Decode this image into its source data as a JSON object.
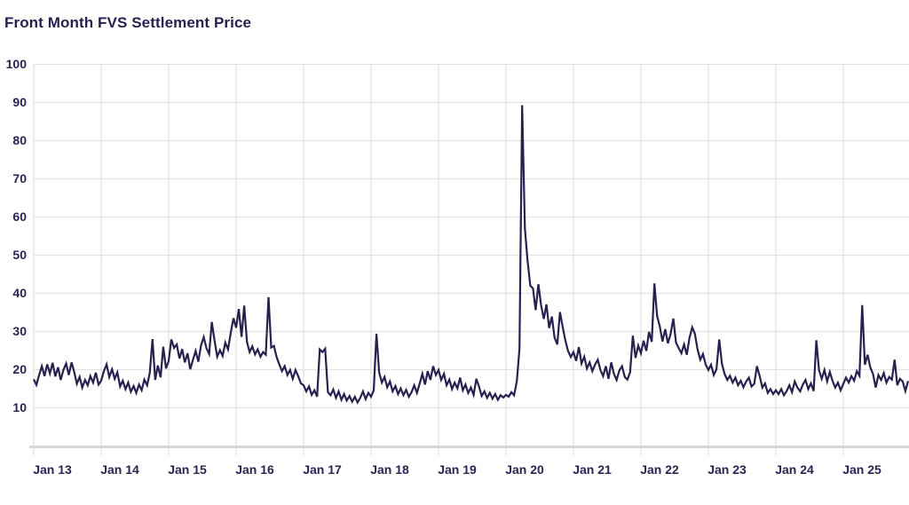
{
  "page": {
    "title": "Front Month FVS Settlement Price"
  },
  "colors": {
    "line": "#272150",
    "label_text": "#2a2454",
    "gridline": "#e2e2e2",
    "axis_line": "#d5d5d5",
    "background": "#ffffff"
  },
  "chart_data": {
    "type": "line",
    "title": "Front Month FVS Settlement Price",
    "xlabel": "",
    "ylabel": "",
    "grid": true,
    "legend_position": "none",
    "ylim": [
      0,
      100
    ],
    "y_tick_values": [
      10,
      20,
      30,
      40,
      50,
      60,
      70,
      80,
      90,
      100
    ],
    "x_tick_labels": [
      "Jan 13",
      "Jan 14",
      "Jan 15",
      "Jan 16",
      "Jan 17",
      "Jan 18",
      "Jan 19",
      "Jan 20",
      "Jan 21",
      "Jan 22",
      "Jan 23",
      "Jan 24",
      "Jan 25"
    ],
    "x_range_years": [
      2013.0,
      2025.96
    ],
    "annotations": [],
    "series": [
      {
        "name": "Front Month FVS Settlement Price",
        "start_year": 2013.0,
        "step_years": 0.04,
        "values": [
          17.5,
          16.0,
          18.6,
          20.9,
          18.3,
          21.4,
          19.0,
          21.8,
          18.2,
          20.6,
          17.3,
          19.9,
          21.6,
          18.6,
          21.9,
          19.4,
          16.3,
          18.1,
          15.3,
          17.3,
          15.9,
          18.3,
          16.6,
          19.2,
          16.1,
          17.1,
          19.6,
          21.4,
          18.1,
          20.1,
          17.6,
          19.3,
          15.6,
          17.1,
          14.9,
          16.6,
          14.2,
          15.7,
          13.9,
          16.1,
          14.6,
          17.4,
          15.9,
          19.1,
          28.0,
          17.3,
          21.1,
          18.0,
          26.0,
          20.3,
          22.3,
          27.9,
          25.7,
          26.6,
          22.9,
          25.4,
          21.9,
          24.3,
          20.1,
          22.6,
          24.9,
          22.1,
          26.4,
          28.5,
          25.6,
          24.1,
          32.5,
          27.6,
          23.4,
          25.1,
          23.6,
          27.1,
          25.3,
          29.6,
          33.5,
          31.0,
          35.9,
          28.6,
          36.8,
          27.3,
          24.6,
          26.1,
          24.0,
          25.3,
          23.4,
          24.6,
          23.9,
          39.0,
          25.8,
          26.2,
          23.3,
          21.4,
          19.6,
          20.9,
          18.6,
          19.9,
          17.6,
          19.9,
          18.3,
          16.4,
          15.9,
          14.3,
          15.6,
          13.4,
          14.6,
          12.9,
          25.3,
          24.6,
          25.5,
          14.1,
          13.3,
          14.8,
          12.6,
          14.3,
          12.1,
          13.6,
          11.9,
          13.1,
          11.6,
          12.9,
          11.4,
          12.6,
          14.3,
          12.3,
          13.9,
          12.9,
          14.6,
          29.4,
          19.3,
          16.6,
          18.1,
          15.4,
          16.9,
          14.3,
          15.7,
          13.6,
          15.1,
          13.3,
          14.7,
          12.9,
          14.1,
          15.9,
          13.9,
          16.3,
          18.9,
          16.1,
          19.6,
          17.3,
          20.9,
          18.6,
          19.9,
          17.3,
          18.9,
          15.9,
          17.4,
          14.9,
          16.6,
          15.1,
          17.9,
          14.6,
          16.1,
          13.9,
          15.3,
          13.4,
          17.6,
          15.6,
          13.1,
          14.3,
          12.6,
          13.9,
          12.4,
          13.6,
          12.1,
          13.3,
          12.7,
          13.4,
          12.9,
          14.1,
          13.3,
          16.9,
          25.5,
          89.3,
          57.0,
          48.5,
          42.0,
          41.3,
          35.6,
          42.4,
          36.9,
          33.3,
          37.1,
          30.9,
          33.9,
          28.4,
          26.6,
          35.1,
          31.3,
          27.6,
          24.9,
          23.3,
          24.6,
          22.3,
          25.9,
          21.6,
          23.4,
          20.3,
          21.9,
          19.6,
          21.3,
          22.6,
          19.9,
          18.3,
          20.9,
          17.6,
          21.9,
          18.9,
          17.3,
          19.8,
          20.9,
          18.1,
          17.4,
          19.3,
          28.9,
          23.1,
          26.3,
          24.3,
          27.6,
          24.9,
          29.9,
          27.3,
          42.6,
          34.1,
          31.3,
          27.4,
          30.6,
          26.9,
          29.3,
          33.4,
          27.1,
          25.6,
          24.3,
          26.6,
          23.9,
          28.3,
          31.1,
          29.4,
          25.3,
          22.6,
          24.1,
          21.3,
          19.9,
          21.3,
          18.6,
          20.1,
          27.9,
          21.6,
          18.9,
          17.3,
          18.4,
          16.6,
          17.9,
          15.9,
          17.1,
          15.4,
          16.9,
          17.9,
          15.6,
          16.3,
          20.9,
          18.3,
          15.3,
          16.4,
          13.9,
          14.9,
          13.6,
          14.6,
          13.6,
          14.9,
          13.3,
          14.4,
          15.9,
          14.1,
          16.9,
          15.3,
          14.3,
          16.1,
          17.3,
          14.9,
          16.4,
          14.4,
          27.7,
          19.9,
          17.6,
          19.9,
          16.9,
          19.4,
          17.1,
          15.3,
          16.6,
          14.6,
          16.3,
          17.9,
          16.6,
          18.3,
          17.1,
          19.6,
          18.4,
          36.9,
          21.3,
          23.9,
          20.6,
          18.9,
          15.3,
          18.6,
          17.3,
          19.1,
          16.6,
          18.1,
          17.4,
          22.6,
          15.9,
          17.6,
          16.9,
          14.4,
          17.0
        ]
      }
    ]
  }
}
